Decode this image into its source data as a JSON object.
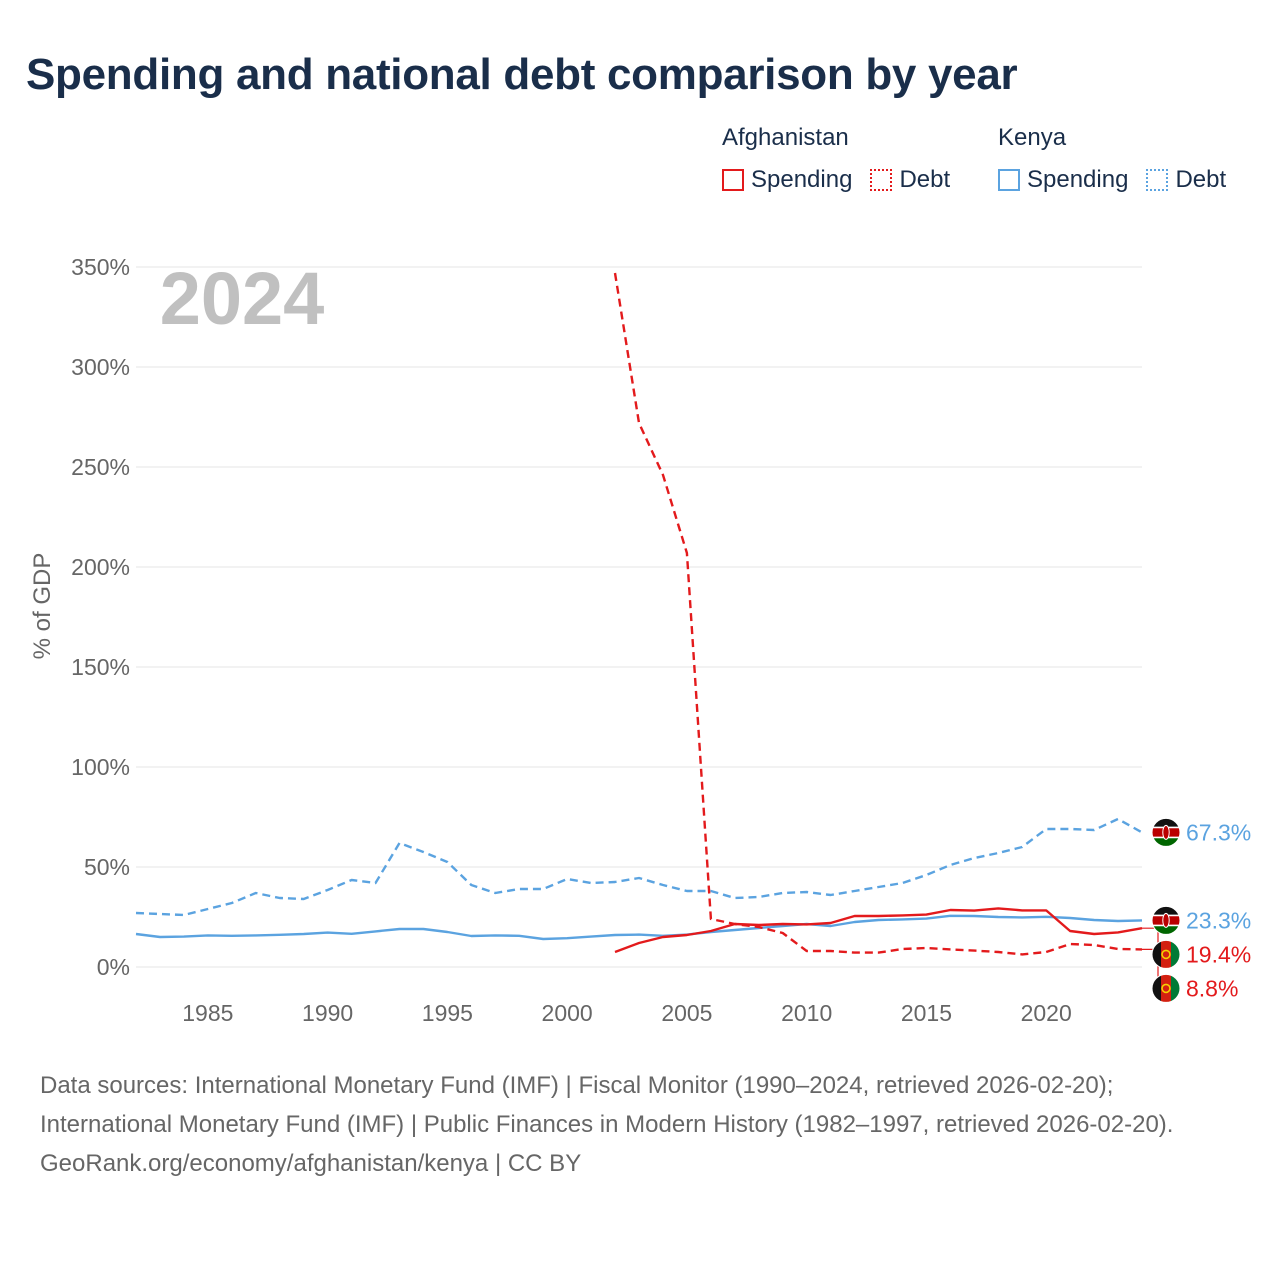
{
  "title": "Spending and national debt comparison by year",
  "legend": {
    "groups": [
      {
        "name": "Afghanistan",
        "items": [
          {
            "label": "Spending",
            "style": "solid",
            "color": "#e31a1c"
          },
          {
            "label": "Debt",
            "style": "dotted",
            "color": "#e31a1c"
          }
        ]
      },
      {
        "name": "Kenya",
        "items": [
          {
            "label": "Spending",
            "style": "solid",
            "color": "#5ba3e0"
          },
          {
            "label": "Debt",
            "style": "dotted",
            "color": "#5ba3e0"
          }
        ]
      }
    ]
  },
  "footer": {
    "sources": "Data sources: International Monetary Fund (IMF) | Fiscal Monitor (1990–2024, retrieved 2026-02-20); International Monetary Fund (IMF) | Public Finances in Modern History (1982–1997, retrieved 2026-02-20).",
    "credit": "GeoRank.org/economy/afghanistan/kenya | CC BY"
  },
  "colors": {
    "afghanistan": "#e31a1c",
    "kenya": "#5ba3e0",
    "title": "#1a2e4a",
    "axis_text": "#666666",
    "grid": "#e6e6e6",
    "year_watermark": "#c0c0c0"
  },
  "chart_data": {
    "type": "line",
    "title": "Spending and national debt comparison by year",
    "year_label": "2024",
    "xlabel": "",
    "ylabel": "% of GDP",
    "xlim": [
      1982,
      2024
    ],
    "ylim": [
      0,
      350
    ],
    "x_ticks": [
      1985,
      1990,
      1995,
      2000,
      2005,
      2010,
      2015,
      2020
    ],
    "y_ticks": [
      0,
      50,
      100,
      150,
      200,
      250,
      300,
      350
    ],
    "y_tick_labels": [
      "0%",
      "50%",
      "100%",
      "150%",
      "200%",
      "250%",
      "300%",
      "350%"
    ],
    "grid": true,
    "series": [
      {
        "name": "Kenya Debt",
        "country": "kenya",
        "style": "dashed",
        "end_label": "67.3%",
        "x": [
          1982,
          1983,
          1984,
          1985,
          1986,
          1987,
          1988,
          1989,
          1990,
          1991,
          1992,
          1993,
          1994,
          1995,
          1996,
          1997,
          1998,
          1999,
          2000,
          2001,
          2002,
          2003,
          2004,
          2005,
          2006,
          2007,
          2008,
          2009,
          2010,
          2011,
          2012,
          2013,
          2014,
          2015,
          2016,
          2017,
          2018,
          2019,
          2020,
          2021,
          2022,
          2023,
          2024
        ],
        "values": [
          27,
          26.5,
          26,
          29,
          32,
          37,
          34.5,
          34,
          38.5,
          43.5,
          42,
          62,
          57.5,
          52.5,
          41,
          37,
          39,
          39,
          44,
          42,
          42.5,
          44.5,
          41,
          38,
          38,
          34.5,
          35,
          37,
          37.5,
          36,
          38,
          40,
          42,
          46,
          51,
          54.5,
          57,
          60,
          69,
          69,
          68.5,
          74,
          67.3
        ]
      },
      {
        "name": "Kenya Spending",
        "country": "kenya",
        "style": "solid",
        "end_label": "23.3%",
        "x": [
          1982,
          1983,
          1984,
          1985,
          1986,
          1987,
          1988,
          1989,
          1990,
          1991,
          1992,
          1993,
          1994,
          1995,
          1996,
          1997,
          1998,
          1999,
          2000,
          2001,
          2002,
          2003,
          2004,
          2005,
          2006,
          2007,
          2008,
          2009,
          2010,
          2011,
          2012,
          2013,
          2014,
          2015,
          2016,
          2017,
          2018,
          2019,
          2020,
          2021,
          2022,
          2023,
          2024
        ],
        "values": [
          16.5,
          15,
          15.2,
          15.8,
          15.6,
          15.8,
          16.1,
          16.5,
          17.2,
          16.6,
          17.8,
          19,
          19,
          17.5,
          15.5,
          15.8,
          15.6,
          14,
          14.4,
          15.2,
          16,
          16.2,
          15.6,
          16.2,
          17.5,
          18.5,
          19.5,
          20.5,
          21.5,
          20.5,
          22.5,
          23.5,
          23.8,
          24.2,
          25.6,
          25.5,
          25,
          24.8,
          25.1,
          24.5,
          23.5,
          23,
          23.3
        ]
      },
      {
        "name": "Afghanistan Debt",
        "country": "afghanistan",
        "style": "dashed",
        "end_label": "8.8%",
        "x": [
          2002,
          2003,
          2004,
          2005,
          2006,
          2007,
          2008,
          2009,
          2010,
          2011,
          2012,
          2013,
          2014,
          2015,
          2016,
          2017,
          2018,
          2019,
          2020,
          2021,
          2022,
          2023,
          2024
        ],
        "values": [
          347,
          272,
          246,
          207,
          24,
          21.5,
          20,
          17,
          8,
          8,
          7.2,
          7.2,
          9,
          9.5,
          8.8,
          8.2,
          7.5,
          6.3,
          7.5,
          11.5,
          11,
          9,
          8.8
        ]
      },
      {
        "name": "Afghanistan Spending",
        "country": "afghanistan",
        "style": "solid",
        "end_label": "19.4%",
        "x": [
          2002,
          2003,
          2004,
          2005,
          2006,
          2007,
          2008,
          2009,
          2010,
          2011,
          2012,
          2013,
          2014,
          2015,
          2016,
          2017,
          2018,
          2019,
          2020,
          2021,
          2022,
          2023,
          2024
        ],
        "values": [
          7.5,
          12,
          15,
          16,
          18,
          21.5,
          21,
          21.5,
          21.3,
          22,
          25.5,
          25.5,
          25.8,
          26.2,
          28.5,
          28.2,
          29.3,
          28.3,
          28.3,
          18,
          16.5,
          17.3,
          19.4
        ]
      }
    ]
  }
}
